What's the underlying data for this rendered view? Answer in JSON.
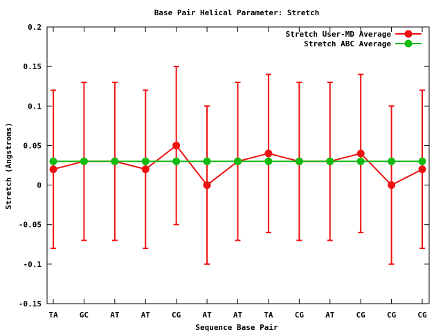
{
  "chart_data": {
    "type": "line",
    "title": "Base Pair Helical Parameter: Stretch",
    "xlabel": "Sequence Base Pair",
    "ylabel": "Stretch (Angstroms)",
    "categories": [
      "TA",
      "GC",
      "AT",
      "AT",
      "CG",
      "AT",
      "AT",
      "TA",
      "CG",
      "AT",
      "CG",
      "CG",
      "CG"
    ],
    "ylim": [
      -0.15,
      0.2
    ],
    "yticks": [
      -0.15,
      -0.1,
      -0.05,
      0,
      0.05,
      0.1,
      0.15,
      0.2
    ],
    "ytick_labels": [
      "-0.15",
      "-0.1",
      "-0.05",
      "0",
      "0.05",
      "0.1",
      "0.15",
      "0.2"
    ],
    "grid": false,
    "legend_position": "top-right",
    "series": [
      {
        "name": "Stretch User-MD Average",
        "color": "#ee1111",
        "values": [
          0.02,
          0.03,
          0.03,
          0.02,
          0.05,
          0.0,
          0.03,
          0.04,
          0.03,
          0.03,
          0.04,
          0.0,
          0.02
        ],
        "err_low": [
          -0.08,
          -0.07,
          -0.07,
          -0.08,
          -0.05,
          -0.1,
          -0.07,
          -0.06,
          -0.07,
          -0.07,
          -0.06,
          -0.1,
          -0.08
        ],
        "err_high": [
          0.12,
          0.13,
          0.13,
          0.12,
          0.15,
          0.1,
          0.13,
          0.14,
          0.13,
          0.13,
          0.14,
          0.1,
          0.12
        ]
      },
      {
        "name": "Stretch ABC Average",
        "color": "#11bb11",
        "values": [
          0.03,
          0.03,
          0.03,
          0.03,
          0.03,
          0.03,
          0.03,
          0.03,
          0.03,
          0.03,
          0.03,
          0.03,
          0.03
        ]
      }
    ]
  }
}
